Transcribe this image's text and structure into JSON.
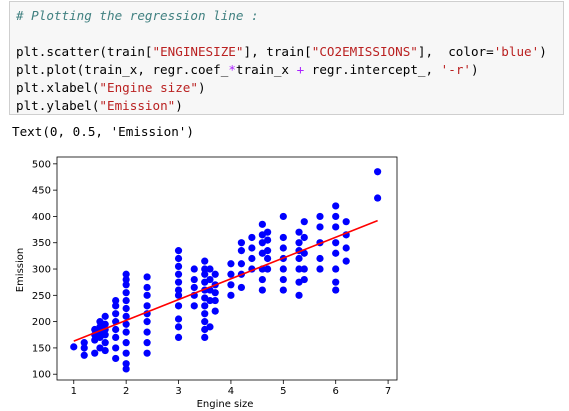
{
  "code_lines": [
    [
      "# Plotting the regression line :"
    ],
    [],
    [
      "plt.scatter(train[",
      "\"ENGINESIZE\"",
      "], train[",
      "\"CO2EMISSIONS\"",
      "],  color=",
      "'blue'",
      ")"
    ],
    [
      "plt.plot(train_x, regr.coef_",
      "*",
      "train_x ",
      "+",
      " regr.intercept_, ",
      "'-r'",
      ")"
    ],
    [
      "plt.xlabel(",
      "\"Engine size\"",
      ")"
    ],
    [
      "plt.ylabel(",
      "\"Emission\"",
      ")"
    ]
  ],
  "output_text": "Text(0, 0.5, 'Emission')",
  "chart_data": [
    {
      "type": "scatter",
      "xlabel": "Engine size",
      "ylabel": "Emission",
      "color": "blue",
      "xlim": [
        0.68,
        7.17
      ],
      "ylim": [
        89,
        513
      ],
      "xticks": [
        1,
        2,
        3,
        4,
        5,
        6,
        7
      ],
      "yticks": [
        100,
        150,
        200,
        250,
        300,
        350,
        400,
        450,
        500
      ],
      "x": [
        1.0,
        1.2,
        1.2,
        1.2,
        1.4,
        1.4,
        1.4,
        1.4,
        1.5,
        1.5,
        1.5,
        1.5,
        1.5,
        1.6,
        1.6,
        1.6,
        1.6,
        1.6,
        1.6,
        1.8,
        1.8,
        1.8,
        1.8,
        1.8,
        1.8,
        1.8,
        1.8,
        2.0,
        2.0,
        2.0,
        2.0,
        2.0,
        2.0,
        2.0,
        2.0,
        2.0,
        2.0,
        2.0,
        2.0,
        2.0,
        2.4,
        2.4,
        2.4,
        2.4,
        2.4,
        2.4,
        2.4,
        2.4,
        2.4,
        3.0,
        3.0,
        3.0,
        3.0,
        3.0,
        3.0,
        3.0,
        3.0,
        3.0,
        3.0,
        3.0,
        3.3,
        3.3,
        3.3,
        3.3,
        3.3,
        3.5,
        3.5,
        3.5,
        3.5,
        3.5,
        3.5,
        3.5,
        3.5,
        3.5,
        3.5,
        3.5,
        3.6,
        3.6,
        3.6,
        3.6,
        3.6,
        3.7,
        3.7,
        3.7,
        3.7,
        3.7,
        4.0,
        4.0,
        4.0,
        4.0,
        4.2,
        4.2,
        4.2,
        4.2,
        4.2,
        4.4,
        4.4,
        4.4,
        4.4,
        4.6,
        4.6,
        4.6,
        4.6,
        4.6,
        4.6,
        4.6,
        4.7,
        4.7,
        4.7,
        4.7,
        4.7,
        5.0,
        5.0,
        5.0,
        5.0,
        5.0,
        5.0,
        5.0,
        5.3,
        5.3,
        5.3,
        5.3,
        5.3,
        5.3,
        5.3,
        5.4,
        5.4,
        5.4,
        5.4,
        5.4,
        5.7,
        5.7,
        5.7,
        5.7,
        5.7,
        6.0,
        6.0,
        6.0,
        6.0,
        6.0,
        6.0,
        6.0,
        6.0,
        6.2,
        6.2,
        6.2,
        6.2,
        6.8,
        6.8
      ],
      "y": [
        152,
        136,
        150,
        160,
        140,
        165,
        175,
        185,
        150,
        170,
        180,
        190,
        200,
        145,
        160,
        175,
        185,
        195,
        210,
        130,
        150,
        170,
        185,
        200,
        215,
        230,
        240,
        110,
        120,
        140,
        160,
        180,
        195,
        210,
        225,
        240,
        255,
        270,
        280,
        290,
        140,
        160,
        180,
        200,
        215,
        230,
        250,
        265,
        285,
        170,
        190,
        205,
        230,
        250,
        260,
        275,
        290,
        305,
        320,
        335,
        230,
        250,
        265,
        280,
        300,
        170,
        185,
        200,
        215,
        230,
        245,
        260,
        275,
        290,
        300,
        315,
        190,
        240,
        260,
        280,
        300,
        220,
        240,
        255,
        270,
        290,
        250,
        270,
        290,
        310,
        265,
        290,
        310,
        335,
        350,
        300,
        320,
        340,
        360,
        260,
        280,
        300,
        330,
        350,
        365,
        385,
        300,
        320,
        335,
        355,
        370,
        260,
        280,
        300,
        320,
        340,
        360,
        400,
        250,
        275,
        300,
        320,
        335,
        350,
        370,
        280,
        300,
        330,
        360,
        390,
        300,
        320,
        350,
        380,
        400,
        260,
        275,
        300,
        330,
        350,
        380,
        400,
        420,
        315,
        340,
        365,
        390,
        435,
        485
      ]
    },
    {
      "type": "line",
      "color": "red",
      "x": [
        1.0,
        6.8
      ],
      "y": [
        163,
        392
      ]
    }
  ]
}
